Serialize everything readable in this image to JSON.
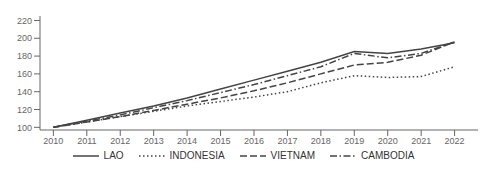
{
  "chart_data": {
    "type": "line",
    "x": [
      2010,
      2011,
      2012,
      2013,
      2014,
      2015,
      2016,
      2017,
      2018,
      2019,
      2020,
      2021,
      2022
    ],
    "xlim": [
      2009.6,
      2022.7
    ],
    "xticks": [
      2010,
      2011,
      2012,
      2013,
      2014,
      2015,
      2016,
      2017,
      2018,
      2019,
      2020,
      2021,
      2022
    ],
    "ylim": [
      97,
      225
    ],
    "yticks": [
      100,
      120,
      140,
      160,
      180,
      200,
      220
    ],
    "grid": false,
    "legend": "bottom",
    "series": [
      {
        "name": "LAO",
        "color": "#444444",
        "line_style": "solid",
        "values": [
          100,
          108,
          116,
          124,
          133,
          143,
          153,
          163,
          173,
          185,
          183,
          188,
          195
        ]
      },
      {
        "name": "INDONESIA",
        "color": "#444444",
        "line_style": "dotted",
        "values": [
          100,
          106,
          112,
          118,
          124,
          129,
          134,
          140,
          150,
          158,
          156,
          157,
          168
        ]
      },
      {
        "name": "VIETNAM",
        "color": "#444444",
        "line_style": "dashed",
        "values": [
          100,
          106,
          112,
          119,
          126,
          133,
          141,
          150,
          160,
          170,
          173,
          181,
          196
        ]
      },
      {
        "name": "CAMBODIA",
        "color": "#444444",
        "line_style": "dashdot",
        "values": [
          100,
          107,
          114,
          122,
          130,
          139,
          148,
          158,
          168,
          183,
          178,
          183,
          196
        ]
      }
    ]
  }
}
